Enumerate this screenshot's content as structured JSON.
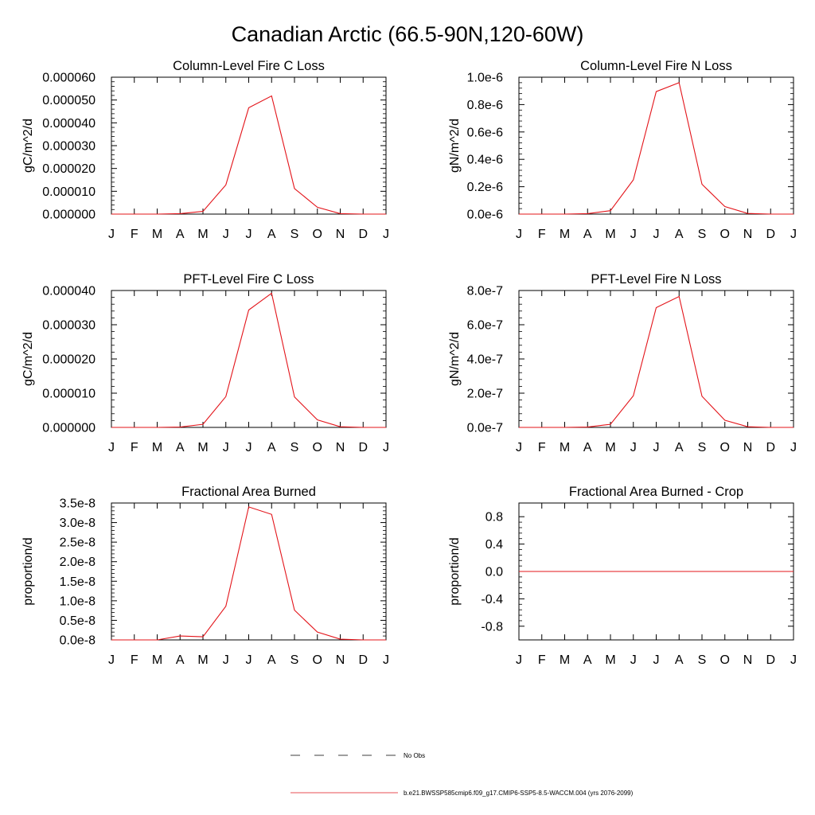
{
  "figure_title": "Canadian Arctic (66.5-90N,120-60W)",
  "legend": {
    "entries": [
      {
        "label": "No Obs",
        "color": "#000000",
        "dashed": true
      },
      {
        "label": "b.e21.BWSSP585cmip6.f09_g17.CMIP6-SSP5-8.5-WACCM.004 (yrs 2076-2099)",
        "color": "#e3141a",
        "dashed": false
      }
    ]
  },
  "chart_data": [
    {
      "type": "line",
      "title": "Column-Level Fire C Loss",
      "ylabel": "gC/m^2/d",
      "categories": [
        "J",
        "F",
        "M",
        "A",
        "M",
        "J",
        "J",
        "A",
        "S",
        "O",
        "N",
        "D",
        "J"
      ],
      "ylim": [
        0,
        6e-05
      ],
      "yticks": [
        0,
        1e-05,
        2e-05,
        3e-05,
        4e-05,
        5e-05,
        6e-05
      ],
      "yticklabels": [
        "0.000000",
        "0.000010",
        "0.000020",
        "0.000030",
        "0.000040",
        "0.000050",
        "0.000060"
      ],
      "series": [
        {
          "name": "b.e21.BWSSP585cmip6.f09_g17.CMIP6-SSP5-8.5-WACCM.004 (yrs 2076-2099)",
          "color": "#e3141a",
          "values": [
            0,
            0,
            0,
            2e-07,
            1.2e-06,
            1.28e-05,
            4.66e-05,
            5.18e-05,
            1.12e-05,
            3e-06,
            2e-07,
            0,
            0
          ]
        }
      ]
    },
    {
      "type": "line",
      "title": "Column-Level Fire N Loss",
      "ylabel": "gN/m^2/d",
      "categories": [
        "J",
        "F",
        "M",
        "A",
        "M",
        "J",
        "J",
        "A",
        "S",
        "O",
        "N",
        "D",
        "J"
      ],
      "ylim": [
        0,
        1e-06
      ],
      "yticks": [
        0,
        2e-07,
        4e-07,
        6e-07,
        8e-07,
        1e-06
      ],
      "yticklabels": [
        "0.0e-6",
        "0.2e-6",
        "0.4e-6",
        "0.6e-6",
        "0.8e-6",
        "1.0e-6"
      ],
      "series": [
        {
          "name": "b.e21.BWSSP585cmip6.f09_g17.CMIP6-SSP5-8.5-WACCM.004 (yrs 2076-2099)",
          "color": "#e3141a",
          "values": [
            0,
            0,
            0,
            3e-09,
            2.5e-08,
            2.5e-07,
            8.95e-07,
            9.6e-07,
            2.18e-07,
            5.5e-08,
            5e-09,
            0,
            0
          ]
        }
      ]
    },
    {
      "type": "line",
      "title": "PFT-Level Fire C Loss",
      "ylabel": "gC/m^2/d",
      "categories": [
        "J",
        "F",
        "M",
        "A",
        "M",
        "J",
        "J",
        "A",
        "S",
        "O",
        "N",
        "D",
        "J"
      ],
      "ylim": [
        0,
        4e-05
      ],
      "yticks": [
        0,
        1e-05,
        2e-05,
        3e-05,
        4e-05
      ],
      "yticklabels": [
        "0.000000",
        "0.000010",
        "0.000020",
        "0.000030",
        "0.000040"
      ],
      "series": [
        {
          "name": "b.e21.BWSSP585cmip6.f09_g17.CMIP6-SSP5-8.5-WACCM.004 (yrs 2076-2099)",
          "color": "#e3141a",
          "values": [
            0,
            0,
            0,
            1e-07,
            9e-07,
            9e-06,
            3.43e-05,
            3.92e-05,
            8.9e-06,
            2.2e-06,
            2e-07,
            0,
            0
          ]
        }
      ]
    },
    {
      "type": "line",
      "title": "PFT-Level Fire N Loss",
      "ylabel": "gN/m^2/d",
      "categories": [
        "J",
        "F",
        "M",
        "A",
        "M",
        "J",
        "J",
        "A",
        "S",
        "O",
        "N",
        "D",
        "J"
      ],
      "ylim": [
        0,
        8e-07
      ],
      "yticks": [
        0,
        2e-07,
        4e-07,
        6e-07,
        8e-07
      ],
      "yticklabels": [
        "0.0e-7",
        "2.0e-7",
        "4.0e-7",
        "6.0e-7",
        "8.0e-7"
      ],
      "series": [
        {
          "name": "b.e21.BWSSP585cmip6.f09_g17.CMIP6-SSP5-8.5-WACCM.004 (yrs 2076-2099)",
          "color": "#e3141a",
          "values": [
            0,
            0,
            0,
            2e-09,
            1.8e-08,
            1.85e-07,
            7e-07,
            7.65e-07,
            1.82e-07,
            4.2e-08,
            4e-09,
            0,
            0
          ]
        }
      ]
    },
    {
      "type": "line",
      "title": "Fractional Area Burned",
      "ylabel": "proportion/d",
      "categories": [
        "J",
        "F",
        "M",
        "A",
        "M",
        "J",
        "J",
        "A",
        "S",
        "O",
        "N",
        "D",
        "J"
      ],
      "ylim": [
        0,
        3.5e-08
      ],
      "yticks": [
        0,
        5e-09,
        1e-08,
        1.5e-08,
        2e-08,
        2.5e-08,
        3e-08,
        3.5e-08
      ],
      "yticklabels": [
        "0.0e-8",
        "0.5e-8",
        "1.0e-8",
        "1.5e-8",
        "2.0e-8",
        "2.5e-8",
        "3.0e-8",
        "3.5e-8"
      ],
      "series": [
        {
          "name": "b.e21.BWSSP585cmip6.f09_g17.CMIP6-SSP5-8.5-WACCM.004 (yrs 2076-2099)",
          "color": "#e3141a",
          "values": [
            0,
            0,
            0,
            1e-09,
            8e-10,
            8.6e-09,
            3.4e-08,
            3.21e-08,
            7.6e-09,
            2e-09,
            2e-10,
            0,
            0
          ]
        }
      ]
    },
    {
      "type": "line",
      "title": "Fractional Area Burned - Crop",
      "ylabel": "proportion/d",
      "categories": [
        "J",
        "F",
        "M",
        "A",
        "M",
        "J",
        "J",
        "A",
        "S",
        "O",
        "N",
        "D",
        "J"
      ],
      "ylim": [
        -1,
        1
      ],
      "yticks": [
        -0.8,
        -0.4,
        0,
        0.4,
        0.8
      ],
      "yticklabels": [
        "-0.8",
        "-0.4",
        "0.0",
        "0.4",
        "0.8"
      ],
      "series": [
        {
          "name": "b.e21.BWSSP585cmip6.f09_g17.CMIP6-SSP5-8.5-WACCM.004 (yrs 2076-2099)",
          "color": "#e3141a",
          "values": [
            0,
            0,
            0,
            0,
            0,
            0,
            0,
            0,
            0,
            0,
            0,
            0,
            0
          ]
        }
      ]
    }
  ]
}
